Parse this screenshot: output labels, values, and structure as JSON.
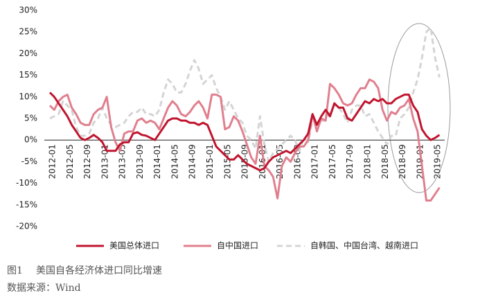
{
  "chart_data": {
    "type": "line",
    "categories": [
      "2012-01",
      null,
      null,
      null,
      "2012-05",
      null,
      null,
      null,
      "2012-09",
      null,
      null,
      null,
      "2013-01",
      null,
      null,
      null,
      "2013-05",
      null,
      null,
      null,
      "2013-09",
      null,
      null,
      null,
      "2014-01",
      null,
      null,
      null,
      "2014-05",
      null,
      null,
      null,
      "2014-09",
      null,
      null,
      null,
      "2015-01",
      null,
      null,
      null,
      "2015-05",
      null,
      null,
      null,
      "2015-09",
      null,
      null,
      null,
      "2016-01",
      null,
      null,
      null,
      "2016-05",
      null,
      null,
      null,
      "2016-09",
      null,
      null,
      null,
      "2017-01",
      null,
      null,
      null,
      "2017-05",
      null,
      null,
      null,
      "2017-09",
      null,
      null,
      null,
      "2018-01",
      null,
      null,
      null,
      "2018-05",
      null,
      null,
      null,
      "2018-09",
      null,
      null,
      null,
      "2019-01",
      null,
      null,
      null,
      "2019-05",
      null
    ],
    "series": [
      {
        "name": "美国总体进口",
        "color": "#c0142e",
        "dash": false,
        "width": 3,
        "values": [
          11,
          10,
          8.5,
          7,
          5.5,
          3.5,
          2,
          0.5,
          0,
          0.5,
          1.2,
          0.5,
          -0.5,
          -2.5,
          -2.5,
          -2.5,
          -1,
          -0.5,
          -0.5,
          1.5,
          1.8,
          1.2,
          1,
          0.5,
          0,
          1.5,
          3,
          4.5,
          5,
          5,
          4.5,
          4.5,
          4,
          4,
          3.5,
          4,
          3.5,
          1,
          -1.5,
          -2.5,
          -3.5,
          -4.5,
          -4.5,
          -3.5,
          -4.5,
          -5.5,
          -6,
          -6.5,
          -7,
          -6.5,
          -5,
          -4,
          -3.5,
          -3,
          -2.5,
          -3,
          -2,
          -1,
          0,
          1.5,
          6,
          3.5,
          5.5,
          7,
          5.5,
          8.5,
          7.5,
          7.5,
          5,
          4.5,
          6,
          7.5,
          9,
          8.5,
          9.5,
          9,
          9.5,
          8.5,
          8.5,
          9.5,
          10,
          10.5,
          10.5,
          8,
          6.5,
          2.5,
          1,
          0,
          0.5,
          1.2
        ]
      },
      {
        "name": "自中国进口",
        "color": "#e07f8e",
        "dash": false,
        "width": 3,
        "values": [
          8,
          7,
          9,
          10,
          10.5,
          7.5,
          6,
          4,
          3.5,
          3.5,
          6,
          7,
          7.5,
          10,
          3,
          -0.5,
          -2.5,
          1.5,
          2,
          2,
          4.5,
          5,
          4,
          4.5,
          4,
          2.5,
          5,
          7.5,
          9,
          8,
          6,
          5.5,
          6.5,
          8,
          9,
          7.5,
          5,
          10.5,
          10.5,
          10,
          2.5,
          3,
          5.5,
          4.5,
          2,
          -1,
          -4,
          -5.5,
          1,
          -6,
          -7,
          -8.5,
          -13.5,
          -6,
          -4,
          -5,
          -3,
          -1.5,
          -1.5,
          0,
          6,
          2,
          5,
          4.5,
          13,
          12,
          10.5,
          8.5,
          8,
          8.5,
          10.5,
          12,
          12,
          14,
          13.5,
          12,
          7,
          4.5,
          6.5,
          6,
          7.5,
          8,
          9.5,
          5,
          2,
          -6,
          -14,
          -14,
          -12.5,
          -11
        ]
      },
      {
        "name": "自韩国、中国台湾、越南进口",
        "color": "#d4d4d4",
        "dash": true,
        "width": 3,
        "values": [
          5,
          5.5,
          6,
          9,
          8,
          7,
          3,
          1,
          1,
          1.5,
          4,
          5,
          7.5,
          5,
          3.5,
          3,
          3.5,
          4,
          5.5,
          6.5,
          6.5,
          7.5,
          6,
          6,
          5.5,
          7,
          11,
          14,
          13,
          11,
          11,
          13,
          16,
          18.5,
          16.5,
          13,
          14,
          15,
          12,
          10,
          7,
          9,
          7,
          5,
          4,
          1,
          0,
          -2,
          5.5,
          -1,
          -5,
          -3,
          -2,
          -1,
          0,
          1,
          0,
          -2.5,
          0.5,
          -0.5,
          4.5,
          4,
          4.5,
          4.5,
          6.5,
          8,
          7.5,
          6,
          4,
          7,
          8,
          8,
          5.5,
          6,
          4,
          2,
          0.5,
          -1,
          1,
          1,
          5,
          6,
          7.5,
          11,
          14,
          19,
          25,
          26,
          19,
          14.5
        ]
      }
    ],
    "ylim": [
      -20,
      30
    ],
    "yticks": [
      {
        "value": -20,
        "label": "-20%"
      },
      {
        "value": -15,
        "label": "-15%"
      },
      {
        "value": -10,
        "label": "-10%"
      },
      {
        "value": -5,
        "label": "-5%"
      },
      {
        "value": 0,
        "label": "0%"
      },
      {
        "value": 5,
        "label": "5%"
      },
      {
        "value": 10,
        "label": "10%"
      },
      {
        "value": 15,
        "label": "15%"
      },
      {
        "value": 20,
        "label": "20%"
      },
      {
        "value": 25,
        "label": "25%"
      },
      {
        "value": 30,
        "label": "30%"
      }
    ],
    "legend": "bottom"
  },
  "caption": {
    "figure": "图1",
    "title": "美国自各经济体进口同比增速",
    "source": "数据来源：Wind"
  }
}
